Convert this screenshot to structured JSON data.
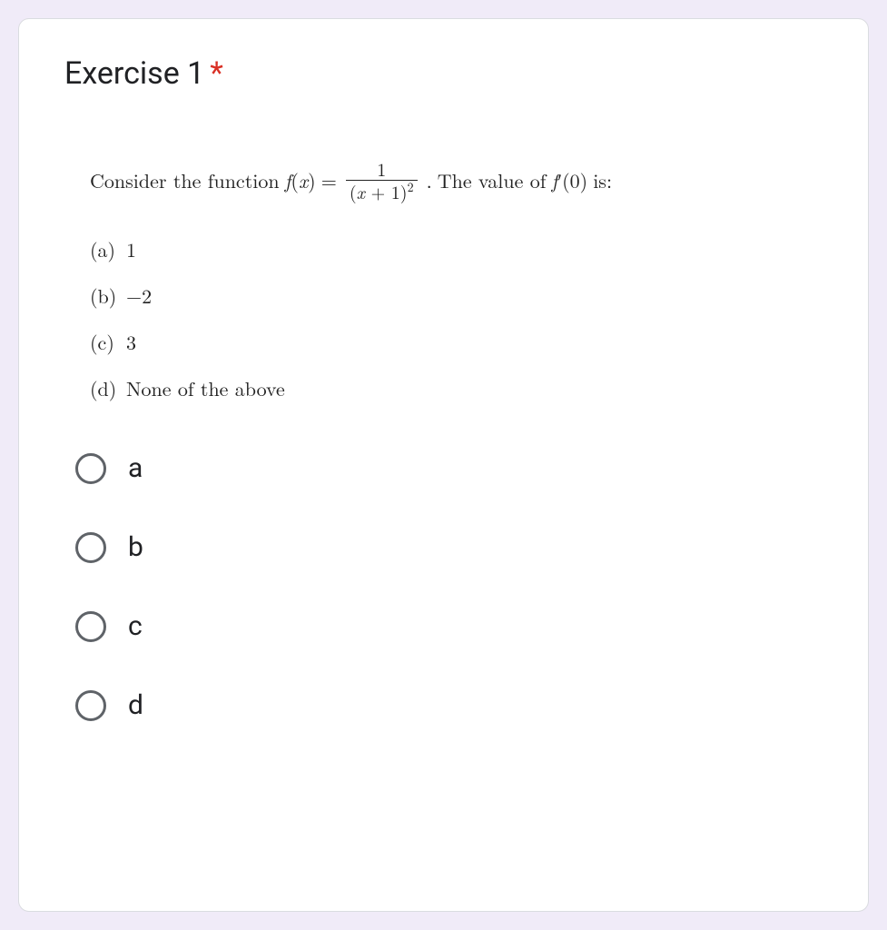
{
  "page": {
    "background_color": "#f0ebf8",
    "card_background": "#ffffff",
    "card_border": "#dadce0"
  },
  "question": {
    "title": "Exercise 1",
    "required_marker": "*",
    "required_color": "#d93025",
    "title_fontsize": 34,
    "statement": {
      "prefix": "Consider the function ",
      "fx": "f",
      "var": "x",
      "eq": "=",
      "frac_num": "1",
      "frac_den_left": "(",
      "frac_den_var": "x",
      "frac_den_plus": " + 1)",
      "frac_den_exp": "2",
      "period": ".",
      "suffix_1": " The value of ",
      "fprime": "f",
      "prime_mark": "′",
      "zero_arg": "(0)",
      "suffix_2": " is:"
    },
    "answers": [
      {
        "letter": "(a)",
        "text": "1"
      },
      {
        "letter": "(b)",
        "text": "−2"
      },
      {
        "letter": "(c)",
        "text": "3"
      },
      {
        "letter": "(d)",
        "text": "None of the above"
      }
    ],
    "options": [
      {
        "label": "a"
      },
      {
        "label": "b"
      },
      {
        "label": "c"
      },
      {
        "label": "d"
      }
    ],
    "radio_border_color": "#5f6368",
    "body_fontsize": 22,
    "option_fontsize": 30
  }
}
